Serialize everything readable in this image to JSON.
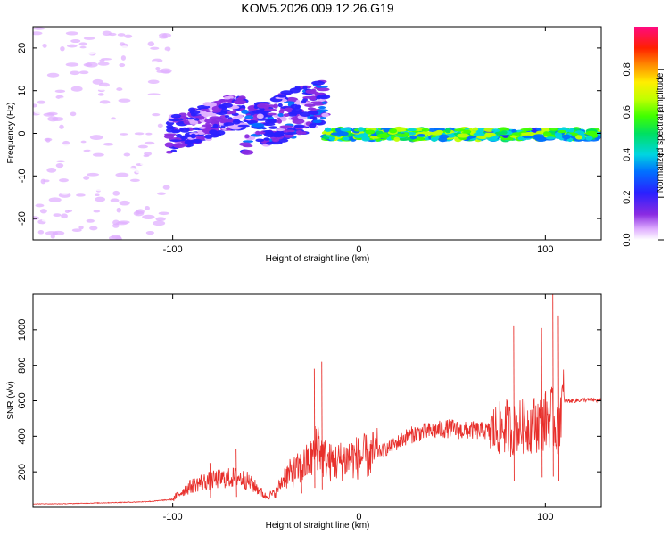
{
  "title": "KOM5.2026.009.12.26.G19",
  "chart_data": [
    {
      "type": "heatmap",
      "name": "spectrogram",
      "xlabel": "Height of straight line (km)",
      "ylabel": "Frequency (Hz)",
      "xlim": [
        -175,
        130
      ],
      "ylim": [
        -25,
        25
      ],
      "x_ticks": [
        -100,
        0,
        100
      ],
      "x_tick_labels": [
        "-100",
        "0",
        "100"
      ],
      "y_ticks": [
        -20,
        -10,
        0,
        10,
        20
      ],
      "y_tick_labels": [
        "-20",
        "-10",
        "0",
        "10",
        "20"
      ],
      "colorbar": {
        "label": "Normalized spectral amplitude",
        "range": [
          0,
          1
        ],
        "ticks": [
          0,
          0.2,
          0.4,
          0.6,
          0.8
        ],
        "tick_labels": [
          "0.0",
          "0.2",
          "0.4",
          "0.6",
          "0.8"
        ]
      },
      "features": [
        {
          "region": "diffuse noise",
          "x_range": [
            -175,
            -102
          ],
          "freq_range": [
            -25,
            25
          ],
          "amplitude": 0.05
        },
        {
          "region": "dispersed arc",
          "x_range": [
            -102,
            -62
          ],
          "freq_range": [
            -4,
            8
          ],
          "amplitude": 0.2
        },
        {
          "region": "dispersed arc",
          "x_range": [
            -62,
            -18
          ],
          "freq_range": [
            -5,
            11
          ],
          "amplitude": 0.22
        },
        {
          "region": "coherent line",
          "x_range": [
            -18,
            130
          ],
          "freq_range": [
            -1.5,
            1
          ],
          "amplitude": 0.7
        }
      ]
    },
    {
      "type": "line",
      "name": "snr",
      "xlabel": "Height of straight line (km)",
      "ylabel": "SNR (v/v)",
      "xlim": [
        -175,
        130
      ],
      "ylim": [
        0,
        1200
      ],
      "x_ticks": [
        -100,
        0,
        100
      ],
      "x_tick_labels": [
        "-100",
        "0",
        "100"
      ],
      "y_ticks": [
        200,
        400,
        600,
        800,
        1000
      ],
      "y_tick_labels": [
        "200",
        "400",
        "600",
        "800",
        "1000"
      ],
      "color": "#e8302c",
      "series": {
        "name": "SNR",
        "x": [
          -175,
          -160,
          -140,
          -120,
          -110,
          -100,
          -95,
          -90,
          -85,
          -80,
          -75,
          -70,
          -65,
          -60,
          -55,
          -50,
          -45,
          -40,
          -35,
          -30,
          -25,
          -22,
          -20,
          -18,
          -15,
          -10,
          -5,
          0,
          5,
          10,
          15,
          20,
          25,
          30,
          35,
          40,
          45,
          50,
          55,
          60,
          65,
          70,
          75,
          78,
          80,
          82,
          85,
          90,
          95,
          100,
          103,
          105,
          107,
          108,
          110,
          115,
          120,
          125,
          130
        ],
        "y": [
          20,
          20,
          25,
          30,
          35,
          45,
          90,
          120,
          140,
          150,
          160,
          165,
          170,
          150,
          110,
          60,
          80,
          170,
          200,
          230,
          280,
          380,
          290,
          270,
          250,
          260,
          280,
          280,
          290,
          310,
          330,
          360,
          395,
          415,
          425,
          430,
          440,
          445,
          430,
          435,
          430,
          430,
          440,
          450,
          460,
          420,
          450,
          460,
          470,
          490,
          520,
          470,
          420,
          560,
          600,
          600,
          605,
          605,
          600
        ]
      },
      "spikes": [
        {
          "x": -80,
          "y": 250
        },
        {
          "x": -66,
          "y": 330
        },
        {
          "x": -31,
          "y": 260
        },
        {
          "x": -24,
          "y": 780
        },
        {
          "x": -20,
          "y": 820
        },
        {
          "x": 83,
          "y": 1020
        },
        {
          "x": 98,
          "y": 1010
        },
        {
          "x": 104,
          "y": 1210
        },
        {
          "x": 107,
          "y": 1080
        }
      ]
    }
  ]
}
